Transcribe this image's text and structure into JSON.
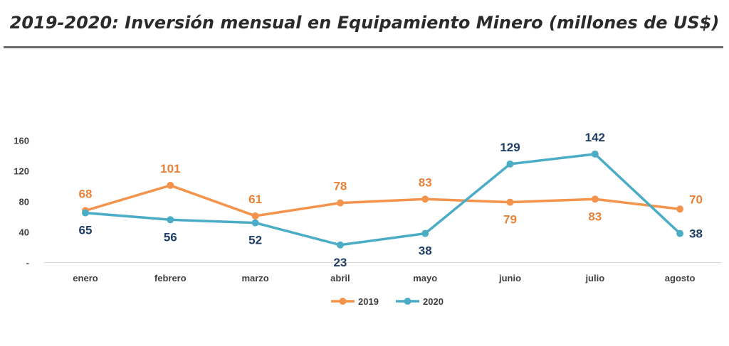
{
  "page": {
    "title": "2019-2020: Inversión mensual en Equipamiento Minero (millones de US$)"
  },
  "chart_data": {
    "type": "line",
    "title": "2019-2020: Inversión mensual en Equipamiento Minero (millones de US$)",
    "categories": [
      "enero",
      "febrero",
      "marzo",
      "abril",
      "mayo",
      "junio",
      "julio",
      "agosto"
    ],
    "series": [
      {
        "name": "2019",
        "color": "#F4944C",
        "label_color": "#E8823A",
        "values": [
          68,
          101,
          61,
          78,
          83,
          79,
          83,
          70
        ]
      },
      {
        "name": "2020",
        "color": "#4BACC6",
        "label_color": "#1F3F66",
        "values": [
          65,
          56,
          52,
          23,
          38,
          129,
          142,
          38
        ]
      }
    ],
    "yticks": [
      "-",
      "40",
      "80",
      "120",
      "160"
    ],
    "ylim": [
      0,
      160
    ],
    "grid": false,
    "legend": "bottom-center",
    "xlabel": "",
    "ylabel": ""
  }
}
